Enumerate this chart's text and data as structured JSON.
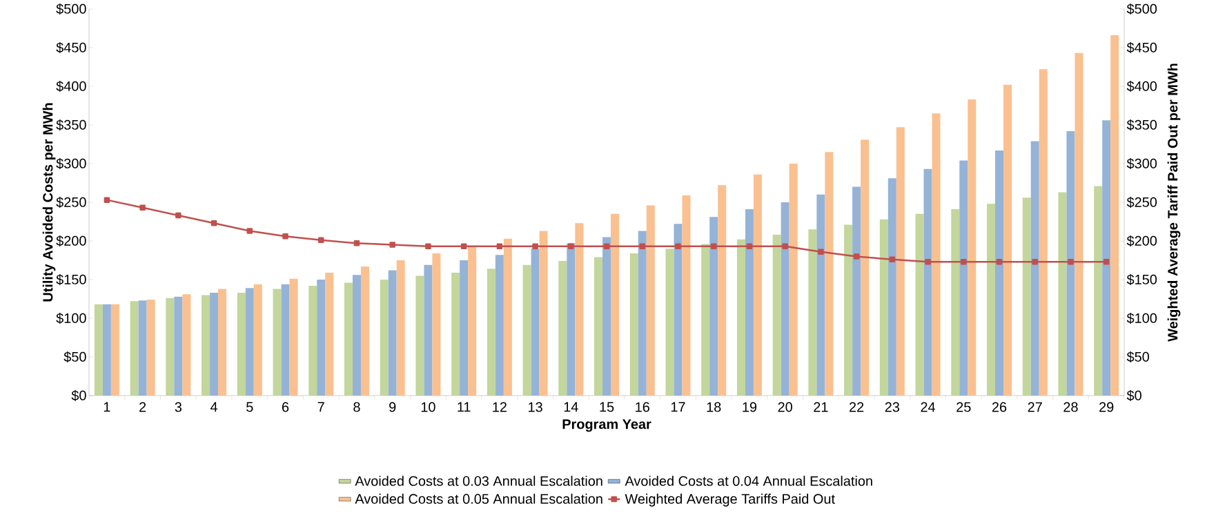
{
  "chart_data": {
    "type": "bar",
    "xlabel": "Program Year",
    "ylabel": "Utility Avoided Costs per MWh",
    "y2label": "Weighted Average Tariff Paid Out per MWh",
    "categories": [
      "1",
      "2",
      "3",
      "4",
      "5",
      "6",
      "7",
      "8",
      "9",
      "10",
      "11",
      "12",
      "13",
      "14",
      "15",
      "16",
      "17",
      "18",
      "19",
      "20",
      "21",
      "22",
      "23",
      "24",
      "25",
      "26",
      "27",
      "28",
      "29"
    ],
    "series": [
      {
        "name": "Avoided Costs at 0.03 Annual Escalation",
        "color": "#c3d69b",
        "values": [
          118,
          122,
          126,
          130,
          133,
          138,
          142,
          146,
          150,
          155,
          159,
          164,
          169,
          174,
          179,
          184,
          190,
          196,
          202,
          208,
          215,
          221,
          228,
          235,
          241,
          248,
          256,
          263,
          271
        ]
      },
      {
        "name": "Avoided Costs at 0.04 Annual Escalation",
        "color": "#95b3d7",
        "values": [
          118,
          123,
          128,
          133,
          139,
          144,
          150,
          156,
          162,
          169,
          175,
          182,
          190,
          197,
          205,
          213,
          222,
          231,
          241,
          250,
          260,
          270,
          281,
          293,
          304,
          317,
          329,
          342,
          356
        ]
      },
      {
        "name": "Avoided Costs at 0.05 Annual Escalation",
        "color": "#fac090",
        "values": [
          118,
          124,
          131,
          138,
          144,
          151,
          159,
          167,
          175,
          184,
          193,
          203,
          213,
          223,
          235,
          246,
          259,
          272,
          286,
          300,
          315,
          331,
          347,
          365,
          383,
          402,
          422,
          443,
          466
        ]
      },
      {
        "name": "Weighted Average Tariffs Paid Out",
        "color": "#c0504d",
        "type": "line",
        "axis": "y2",
        "marker": "square",
        "values": [
          253,
          243,
          233,
          223,
          213,
          206,
          201,
          197,
          195,
          193,
          193,
          193,
          193,
          193,
          193,
          193,
          193,
          193,
          193,
          193,
          186,
          180,
          176,
          173,
          173,
          173,
          173,
          173,
          173
        ]
      }
    ],
    "ylim": [
      0,
      500
    ],
    "yticks": [
      {
        "value": 0,
        "label": "$0"
      },
      {
        "value": 50,
        "label": "$50"
      },
      {
        "value": 100,
        "label": "$100"
      },
      {
        "value": 150,
        "label": "$150"
      },
      {
        "value": 200,
        "label": "$200"
      },
      {
        "value": 250,
        "label": "$250"
      },
      {
        "value": 300,
        "label": "$300"
      },
      {
        "value": 350,
        "label": "$350"
      },
      {
        "value": 400,
        "label": "$400"
      },
      {
        "value": 450,
        "label": "$450"
      },
      {
        "value": 500,
        "label": "$500"
      }
    ],
    "y2lim": [
      0,
      500
    ],
    "y2ticks": [
      {
        "value": 0,
        "label": "$0"
      },
      {
        "value": 50,
        "label": "$50"
      },
      {
        "value": 100,
        "label": "$100"
      },
      {
        "value": 150,
        "label": "$150"
      },
      {
        "value": 200,
        "label": "$200"
      },
      {
        "value": 250,
        "label": "$250"
      },
      {
        "value": 300,
        "label": "$300"
      },
      {
        "value": 350,
        "label": "$350"
      },
      {
        "value": 400,
        "label": "$400"
      },
      {
        "value": 450,
        "label": "$450"
      },
      {
        "value": 500,
        "label": "$500"
      }
    ],
    "legend": "bottom"
  }
}
